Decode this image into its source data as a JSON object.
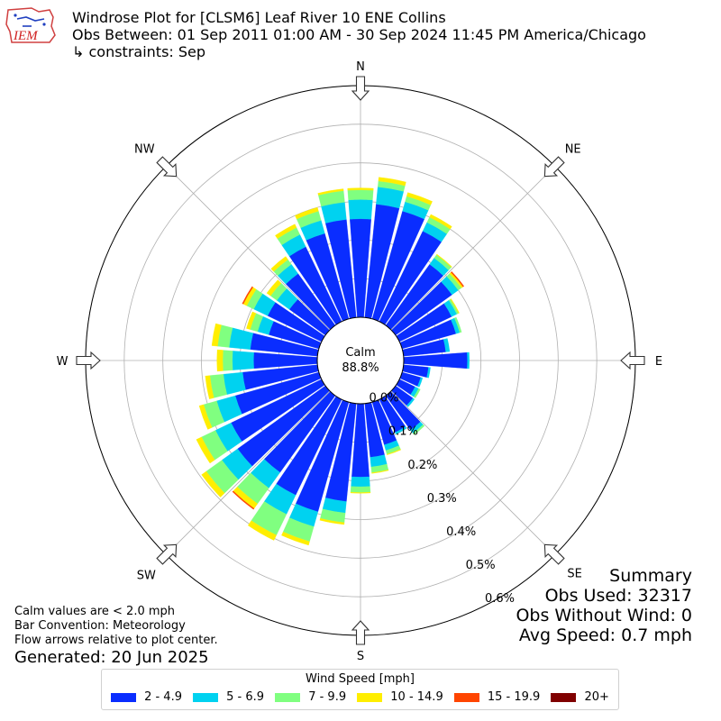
{
  "header": {
    "title": "Windrose Plot for [CLSM6] Leaf River 10 ENE Collins",
    "subtitle": "Obs Between: 01 Sep 2011 01:00 AM - 30 Sep 2024 11:45 PM America/Chicago",
    "constraints": "↳ constraints: Sep"
  },
  "logo": {
    "text": "IEM"
  },
  "summary": {
    "heading": "Summary",
    "obs_used": "Obs Used: 32317",
    "obs_without_wind": "Obs Without Wind: 0",
    "avg_speed": "Avg Speed: 0.7 mph"
  },
  "notes": {
    "calm_note": "Calm values are < 2.0 mph",
    "bar_convention": "Bar Convention: Meteorology",
    "flow_arrows": "Flow arrows relative to plot center.",
    "generated": "Generated: 20 Jun 2025"
  },
  "calm": {
    "label": "Calm",
    "value": "88.8%"
  },
  "legend": {
    "title": "Wind Speed [mph]"
  },
  "chart_data": {
    "type": "windrose",
    "directions": [
      "N",
      "NE",
      "E",
      "SE",
      "S",
      "SW",
      "W",
      "NW"
    ],
    "rlim": [
      0,
      0.6
    ],
    "radial_ticks": [
      "0.0%",
      "0.1%",
      "0.2%",
      "0.3%",
      "0.4%",
      "0.5%",
      "0.6%"
    ],
    "calm_percent": 88.8,
    "grid": true,
    "bin_count": 36,
    "bin_centers_deg": [
      0,
      10,
      20,
      30,
      40,
      50,
      60,
      70,
      80,
      90,
      100,
      110,
      120,
      130,
      140,
      150,
      160,
      170,
      180,
      190,
      200,
      210,
      220,
      230,
      240,
      250,
      260,
      270,
      280,
      290,
      300,
      310,
      320,
      330,
      340,
      350
    ],
    "series": [
      {
        "name": "2 - 4.9",
        "color": "#0a2dff",
        "values": [
          0.255,
          0.295,
          0.29,
          0.26,
          0.195,
          0.18,
          0.15,
          0.145,
          0.11,
          0.165,
          0.065,
          0.05,
          0.045,
          0.055,
          0.11,
          0.095,
          0.115,
          0.14,
          0.19,
          0.255,
          0.295,
          0.275,
          0.245,
          0.28,
          0.26,
          0.225,
          0.195,
          0.165,
          0.175,
          0.135,
          0.155,
          0.115,
          0.165,
          0.215,
          0.23,
          0.255
        ]
      },
      {
        "name": "5 - 6.9",
        "color": "#00d2f0",
        "values": [
          0.05,
          0.045,
          0.025,
          0.025,
          0.02,
          0.02,
          0.015,
          0.01,
          0.01,
          0.005,
          0.005,
          0.005,
          0.01,
          0.005,
          0.01,
          0.005,
          0.015,
          0.025,
          0.025,
          0.03,
          0.04,
          0.055,
          0.05,
          0.05,
          0.045,
          0.05,
          0.05,
          0.055,
          0.055,
          0.03,
          0.04,
          0.04,
          0.03,
          0.035,
          0.035,
          0.045
        ]
      },
      {
        "name": "7 - 9.9",
        "color": "#80ff80",
        "values": [
          0.025,
          0.015,
          0.015,
          0.015,
          0.01,
          0.01,
          0.005,
          0.005,
          0.0,
          0.0,
          0.0,
          0.0,
          0.005,
          0.0,
          0.005,
          0.0,
          0.01,
          0.015,
          0.015,
          0.025,
          0.04,
          0.06,
          0.05,
          0.05,
          0.04,
          0.035,
          0.035,
          0.025,
          0.03,
          0.02,
          0.02,
          0.02,
          0.015,
          0.02,
          0.025,
          0.03
        ]
      },
      {
        "name": "10 - 14.9",
        "color": "#ffee00",
        "values": [
          0.005,
          0.01,
          0.01,
          0.008,
          0.002,
          0.005,
          0.002,
          0.0,
          0.0,
          0.0,
          0.0,
          0.0,
          0.0,
          0.0,
          0.0,
          0.0,
          0.002,
          0.002,
          0.002,
          0.005,
          0.01,
          0.015,
          0.015,
          0.015,
          0.015,
          0.012,
          0.012,
          0.015,
          0.015,
          0.01,
          0.01,
          0.012,
          0.01,
          0.01,
          0.01,
          0.005
        ]
      },
      {
        "name": "15 - 19.9",
        "color": "#ff4500",
        "values": [
          0,
          0,
          0,
          0,
          0,
          0.003,
          0,
          0,
          0,
          0,
          0,
          0,
          0,
          0,
          0,
          0,
          0,
          0,
          0,
          0,
          0,
          0,
          0.003,
          0,
          0,
          0,
          0,
          0,
          0,
          0,
          0.003,
          0,
          0,
          0,
          0,
          0
        ]
      },
      {
        "name": "20+",
        "color": "#800000",
        "values": [
          0,
          0,
          0,
          0,
          0,
          0,
          0,
          0,
          0,
          0,
          0,
          0,
          0,
          0,
          0,
          0,
          0,
          0,
          0,
          0,
          0,
          0,
          0,
          0,
          0,
          0,
          0,
          0,
          0,
          0,
          0,
          0,
          0,
          0,
          0,
          0
        ]
      }
    ]
  }
}
